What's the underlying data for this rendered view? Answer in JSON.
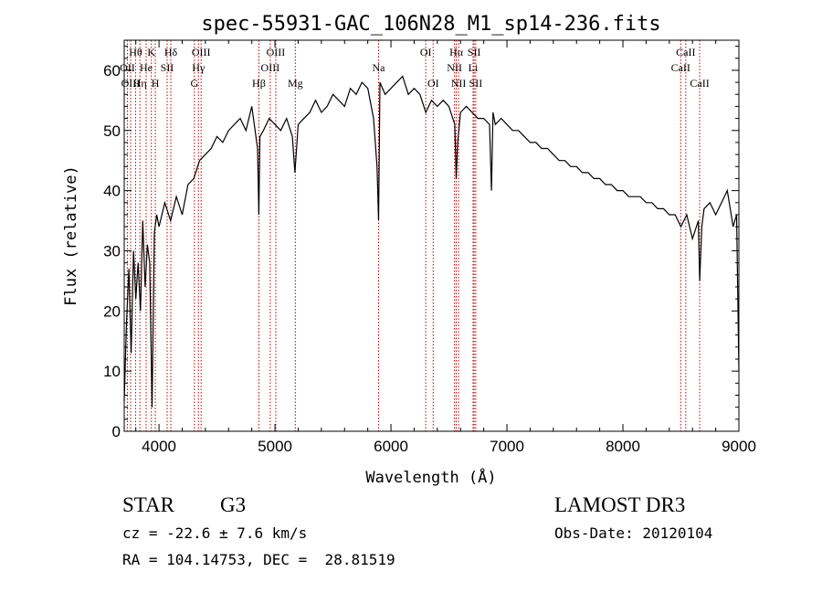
{
  "chart_data": {
    "type": "line",
    "title": "spec-55931-GAC_106N28_M1_sp14-236.fits",
    "xlabel": "Wavelength (Å)",
    "ylabel": "Flux (relative)",
    "xlim": [
      3700,
      9000
    ],
    "ylim": [
      0,
      65
    ],
    "xticks": [
      4000,
      5000,
      6000,
      7000,
      8000,
      9000
    ],
    "yticks": [
      0,
      10,
      20,
      30,
      40,
      50,
      60
    ],
    "grid": false,
    "series": [
      {
        "name": "spectrum",
        "x": [
          3700,
          3720,
          3740,
          3760,
          3780,
          3800,
          3820,
          3840,
          3860,
          3880,
          3900,
          3920,
          3940,
          3960,
          3980,
          4000,
          4050,
          4100,
          4150,
          4200,
          4250,
          4300,
          4350,
          4400,
          4450,
          4500,
          4550,
          4600,
          4650,
          4700,
          4750,
          4800,
          4850,
          4861,
          4870,
          4900,
          4950,
          5000,
          5050,
          5100,
          5150,
          5172,
          5200,
          5250,
          5300,
          5350,
          5400,
          5450,
          5500,
          5550,
          5600,
          5650,
          5700,
          5750,
          5800,
          5850,
          5880,
          5893,
          5905,
          5950,
          6000,
          6050,
          6100,
          6150,
          6200,
          6250,
          6300,
          6350,
          6400,
          6450,
          6500,
          6550,
          6563,
          6575,
          6600,
          6650,
          6700,
          6750,
          6800,
          6850,
          6867,
          6880,
          6900,
          6950,
          7000,
          7050,
          7100,
          7150,
          7200,
          7250,
          7300,
          7350,
          7400,
          7450,
          7500,
          7550,
          7600,
          7650,
          7700,
          7750,
          7800,
          7850,
          7900,
          7950,
          8000,
          8050,
          8100,
          8150,
          8200,
          8250,
          8300,
          8350,
          8400,
          8450,
          8500,
          8550,
          8600,
          8650,
          8662,
          8680,
          8700,
          8750,
          8800,
          8850,
          8900,
          8950,
          8980,
          9000
        ],
        "values": [
          5,
          18,
          27,
          13,
          30,
          22,
          28,
          20,
          35,
          24,
          31,
          28,
          4,
          33,
          36,
          34,
          38,
          35,
          39,
          36,
          41,
          42,
          45,
          46,
          47,
          49,
          48,
          50,
          51,
          52,
          50,
          54,
          47,
          36,
          49,
          50,
          52,
          51,
          50,
          52,
          49,
          43,
          51,
          52,
          53,
          55,
          53,
          54,
          56,
          55,
          54,
          57,
          56,
          58,
          57,
          52,
          44,
          35,
          58,
          56,
          57,
          58,
          59,
          56,
          57,
          56,
          53,
          55,
          54,
          55,
          54,
          51,
          42,
          48,
          53,
          54,
          53,
          52,
          52,
          51,
          40,
          53,
          51,
          52,
          51,
          50,
          50,
          49,
          48,
          48,
          47,
          47,
          46,
          45,
          45,
          44,
          44,
          43,
          43,
          42,
          42,
          41,
          41,
          40,
          40,
          39,
          39,
          39,
          38,
          38,
          37,
          37,
          36,
          36,
          34,
          36,
          32,
          35,
          25,
          34,
          37,
          38,
          36,
          38,
          40,
          34,
          36,
          10
        ]
      }
    ],
    "spectral_lines": [
      {
        "label": "Hθ",
        "x": 3798,
        "row": 0
      },
      {
        "label": "OII",
        "x": 3727,
        "row": 1
      },
      {
        "label": "OIII",
        "x": 3755,
        "row": 2
      },
      {
        "label": "Hη",
        "x": 3835,
        "row": 2
      },
      {
        "label": "He",
        "x": 3889,
        "row": 1
      },
      {
        "label": "K",
        "x": 3934,
        "row": 0
      },
      {
        "label": "H",
        "x": 3968,
        "row": 2
      },
      {
        "label": "SII",
        "x": 4070,
        "row": 1
      },
      {
        "label": "Hδ",
        "x": 4102,
        "row": 0
      },
      {
        "label": "OIII",
        "x": 4363,
        "row": 0
      },
      {
        "label": "Hγ",
        "x": 4340,
        "row": 1
      },
      {
        "label": "G",
        "x": 4305,
        "row": 2
      },
      {
        "label": "Hβ",
        "x": 4861,
        "row": 2
      },
      {
        "label": "OIII",
        "x": 5007,
        "row": 0
      },
      {
        "label": "OIII",
        "x": 4959,
        "row": 1
      },
      {
        "label": "Mg",
        "x": 5175,
        "row": 2
      },
      {
        "label": "Na",
        "x": 5893,
        "row": 1
      },
      {
        "label": "OI",
        "x": 6300,
        "row": 0
      },
      {
        "label": "OI",
        "x": 6364,
        "row": 2
      },
      {
        "label": "Hα",
        "x": 6563,
        "row": 0
      },
      {
        "label": "SII",
        "x": 6717,
        "row": 0
      },
      {
        "label": "NII",
        "x": 6548,
        "row": 1
      },
      {
        "label": "Li",
        "x": 6708,
        "row": 1
      },
      {
        "label": "NII",
        "x": 6583,
        "row": 2
      },
      {
        "label": "SII",
        "x": 6731,
        "row": 2
      },
      {
        "label": "CaII",
        "x": 8542,
        "row": 0
      },
      {
        "label": "CaII",
        "x": 8498,
        "row": 1
      },
      {
        "label": "CaII",
        "x": 8662,
        "row": 2
      }
    ]
  },
  "info": {
    "class_type": "STAR",
    "subclass": "G3",
    "survey": "LAMOST DR3",
    "cz": "cz = -22.6 ± 7.6 km/s",
    "obs_date": "Obs-Date: 20120104",
    "coords": "RA = 104.14753, DEC =  28.81519"
  },
  "colors": {
    "line_marker": "#c00000",
    "spectrum": "#000000"
  }
}
